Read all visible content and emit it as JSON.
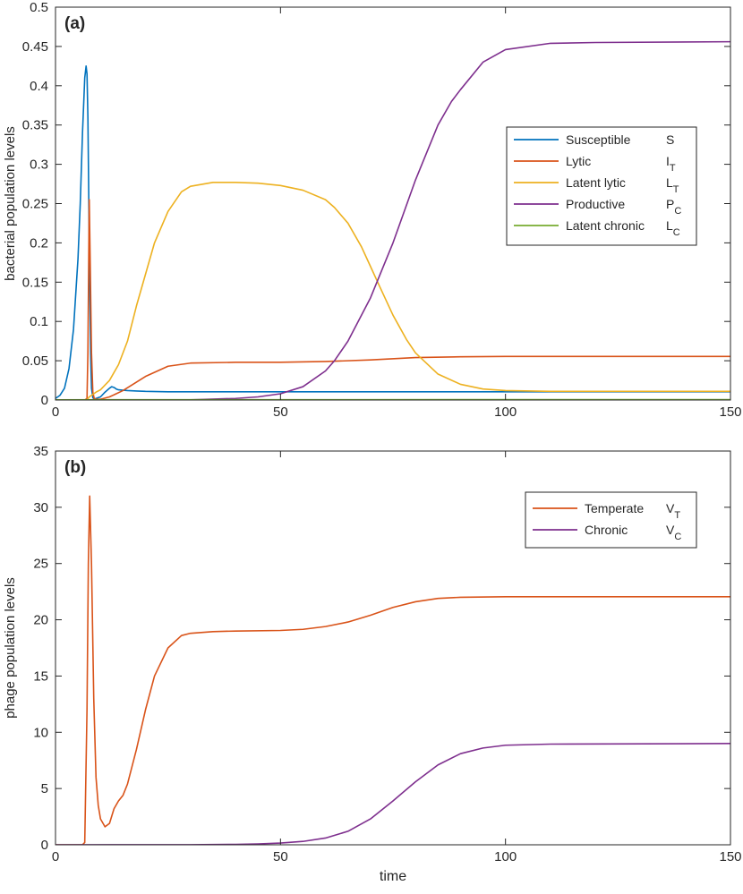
{
  "figure": {
    "xlabel_shared": "time"
  },
  "chart_data": [
    {
      "type": "line",
      "panel_label": "(a)",
      "xlabel": "",
      "ylabel": "bacterial population levels",
      "xlim": [
        0,
        150
      ],
      "ylim": [
        0,
        0.5
      ],
      "xticks": [
        0,
        50,
        100,
        150
      ],
      "yticks": [
        0,
        0.05,
        0.1,
        0.15,
        0.2,
        0.25,
        0.3,
        0.35,
        0.4,
        0.45,
        0.5
      ],
      "ytick_labels": [
        "0",
        "0.05",
        "0.1",
        "0.15",
        "0.2",
        "0.25",
        "0.3",
        "0.35",
        "0.4",
        "0.45",
        "0.5"
      ],
      "grid": false,
      "legend_position": "right",
      "series": [
        {
          "name": "Susceptible",
          "symbol": "S",
          "subscript": "",
          "color": "#0072BD",
          "x": [
            0,
            1,
            2,
            3,
            4,
            5,
            5.5,
            6,
            6.5,
            6.8,
            7,
            7.2,
            7.5,
            7.8,
            8,
            8.3,
            8.6,
            9,
            10,
            11,
            12,
            12.5,
            13,
            13.5,
            14,
            15,
            16,
            18,
            20,
            25,
            30,
            50,
            150
          ],
          "y": [
            0.002,
            0.006,
            0.015,
            0.04,
            0.09,
            0.18,
            0.25,
            0.34,
            0.41,
            0.425,
            0.415,
            0.36,
            0.2,
            0.06,
            0.015,
            0.003,
            0.001,
            0.002,
            0.004,
            0.01,
            0.015,
            0.017,
            0.016,
            0.014,
            0.013,
            0.0125,
            0.012,
            0.0115,
            0.011,
            0.0105,
            0.0105,
            0.0105,
            0.0105
          ]
        },
        {
          "name": "Lytic",
          "symbol": "I",
          "subscript": "T",
          "color": "#D95319",
          "x": [
            0,
            6.5,
            7,
            7.2,
            7.5,
            7.7,
            8,
            8.3,
            8.6,
            9,
            10,
            12,
            15,
            20,
            25,
            30,
            40,
            50,
            60,
            70,
            80,
            90,
            100,
            150
          ],
          "y": [
            0,
            0,
            0.002,
            0.06,
            0.255,
            0.18,
            0.06,
            0.01,
            0.002,
            0.001,
            0.001,
            0.004,
            0.012,
            0.03,
            0.043,
            0.047,
            0.048,
            0.048,
            0.049,
            0.051,
            0.054,
            0.055,
            0.0555,
            0.0555
          ]
        },
        {
          "name": "Latent lytic",
          "symbol": "L",
          "subscript": "T",
          "color": "#EDB120",
          "x": [
            0,
            6.5,
            7,
            7.5,
            8,
            9,
            10,
            12,
            14,
            16,
            18,
            20,
            22,
            25,
            28,
            30,
            35,
            40,
            45,
            50,
            55,
            60,
            62,
            65,
            68,
            70,
            72,
            75,
            78,
            80,
            85,
            90,
            95,
            100,
            110,
            150
          ],
          "y": [
            0,
            0,
            0.0005,
            0.004,
            0.006,
            0.01,
            0.013,
            0.025,
            0.045,
            0.075,
            0.12,
            0.16,
            0.2,
            0.24,
            0.265,
            0.272,
            0.277,
            0.277,
            0.276,
            0.273,
            0.267,
            0.255,
            0.245,
            0.225,
            0.195,
            0.17,
            0.145,
            0.108,
            0.077,
            0.06,
            0.033,
            0.02,
            0.014,
            0.012,
            0.011,
            0.011
          ]
        },
        {
          "name": "Productive",
          "symbol": "P",
          "subscript": "C",
          "color": "#7E2F8E",
          "x": [
            0,
            20,
            30,
            40,
            45,
            50,
            55,
            60,
            62,
            65,
            70,
            75,
            80,
            85,
            88,
            90,
            95,
            100,
            110,
            120,
            150
          ],
          "y": [
            0,
            0,
            0.0003,
            0.002,
            0.004,
            0.008,
            0.017,
            0.037,
            0.05,
            0.075,
            0.13,
            0.2,
            0.28,
            0.35,
            0.38,
            0.395,
            0.43,
            0.446,
            0.454,
            0.455,
            0.456
          ]
        },
        {
          "name": "Latent chronic",
          "symbol": "L",
          "subscript": "C",
          "color": "#77AC30",
          "x": [
            0,
            50,
            100,
            150
          ],
          "y": [
            0.0003,
            0.0004,
            0.0005,
            0.0005
          ]
        }
      ]
    },
    {
      "type": "line",
      "panel_label": "(b)",
      "xlabel": "time",
      "ylabel": "phage population levels",
      "xlim": [
        0,
        150
      ],
      "ylim": [
        0,
        35
      ],
      "xticks": [
        0,
        50,
        100,
        150
      ],
      "yticks": [
        0,
        5,
        10,
        15,
        20,
        25,
        30,
        35
      ],
      "ytick_labels": [
        "0",
        "5",
        "10",
        "15",
        "20",
        "25",
        "30",
        "35"
      ],
      "grid": false,
      "legend_position": "top-right",
      "series": [
        {
          "name": "Temperate",
          "symbol": "V",
          "subscript": "T",
          "color": "#D95319",
          "x": [
            0,
            6,
            6.5,
            7,
            7.3,
            7.6,
            8,
            8.5,
            9,
            9.5,
            10,
            11,
            12,
            13,
            14,
            15,
            16,
            18,
            20,
            22,
            25,
            28,
            30,
            35,
            40,
            50,
            55,
            60,
            65,
            70,
            75,
            80,
            85,
            90,
            100,
            110,
            150
          ],
          "y": [
            0,
            0,
            0.2,
            12,
            25,
            31,
            25,
            13,
            6,
            3.5,
            2.3,
            1.6,
            1.9,
            3.2,
            3.9,
            4.4,
            5.4,
            8.5,
            12,
            15,
            17.5,
            18.6,
            18.8,
            18.95,
            19,
            19.05,
            19.15,
            19.4,
            19.8,
            20.4,
            21.1,
            21.6,
            21.9,
            22,
            22.05,
            22.05,
            22.05
          ]
        },
        {
          "name": "Chronic",
          "symbol": "V",
          "subscript": "C",
          "color": "#7E2F8E",
          "x": [
            0,
            30,
            40,
            45,
            50,
            55,
            60,
            65,
            70,
            75,
            80,
            85,
            90,
            95,
            100,
            110,
            150
          ],
          "y": [
            0,
            0.01,
            0.04,
            0.08,
            0.15,
            0.3,
            0.6,
            1.2,
            2.3,
            3.9,
            5.6,
            7.1,
            8.1,
            8.6,
            8.85,
            8.95,
            9
          ]
        }
      ]
    }
  ]
}
